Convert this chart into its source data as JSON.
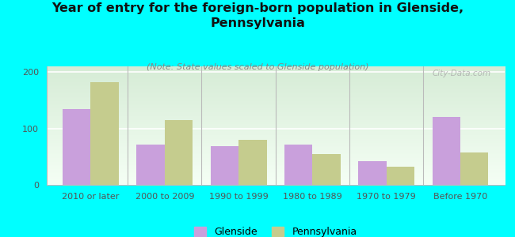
{
  "title": "Year of entry for the foreign-born population in Glenside,\nPennsylvania",
  "subtitle": "(Note: State values scaled to Glenside population)",
  "categories": [
    "2010 or later",
    "2000 to 2009",
    "1990 to 1999",
    "1980 to 1989",
    "1970 to 1979",
    "Before 1970"
  ],
  "glenside_values": [
    135,
    72,
    68,
    72,
    42,
    120
  ],
  "pennsylvania_values": [
    182,
    115,
    80,
    55,
    32,
    57
  ],
  "glenside_color": "#c9a0dc",
  "pennsylvania_color": "#c5cc8e",
  "background_color": "#00ffff",
  "yticks": [
    0,
    100,
    200
  ],
  "ylim": [
    0,
    210
  ],
  "bar_width": 0.38,
  "watermark": "City-Data.com",
  "title_fontsize": 11.5,
  "subtitle_fontsize": 8,
  "legend_fontsize": 9,
  "axis_tick_fontsize": 8
}
